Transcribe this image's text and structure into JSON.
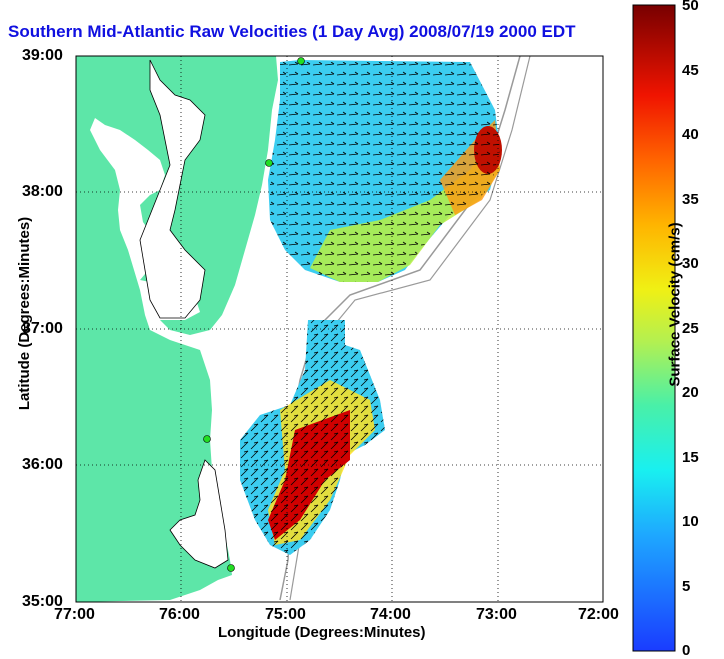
{
  "title": "Southern Mid-Atlantic Raw Velocities (1 Day Avg) 2008/07/19 2000 EDT",
  "colors": {
    "land": "#5de6a8",
    "ocean": "#ffffff",
    "title": "#1010e0",
    "bathy": "#9a9a9a"
  },
  "axes": {
    "xlabel": "Longitude (Degrees:Minutes)",
    "ylabel": "Latitude (Degrees:Minutes)",
    "xticks": [
      "77:00",
      "76:00",
      "75:00",
      "74:00",
      "73:00",
      "72:00"
    ],
    "yticks": [
      "39:00",
      "38:00",
      "37:00",
      "36:00",
      "35:00"
    ]
  },
  "colorbar": {
    "label": "Surface Velocity (cm/s)",
    "ticks": [
      "50",
      "45",
      "40",
      "35",
      "30",
      "25",
      "20",
      "15",
      "10",
      "5",
      "0"
    ],
    "range": [
      0,
      50
    ]
  },
  "chart_data": {
    "type": "heatmap",
    "xlim": [
      -77,
      -72
    ],
    "ylim": [
      35,
      39
    ],
    "grid": true,
    "stations": [
      "station-1",
      "station-2",
      "station-3",
      "station-4"
    ]
  }
}
